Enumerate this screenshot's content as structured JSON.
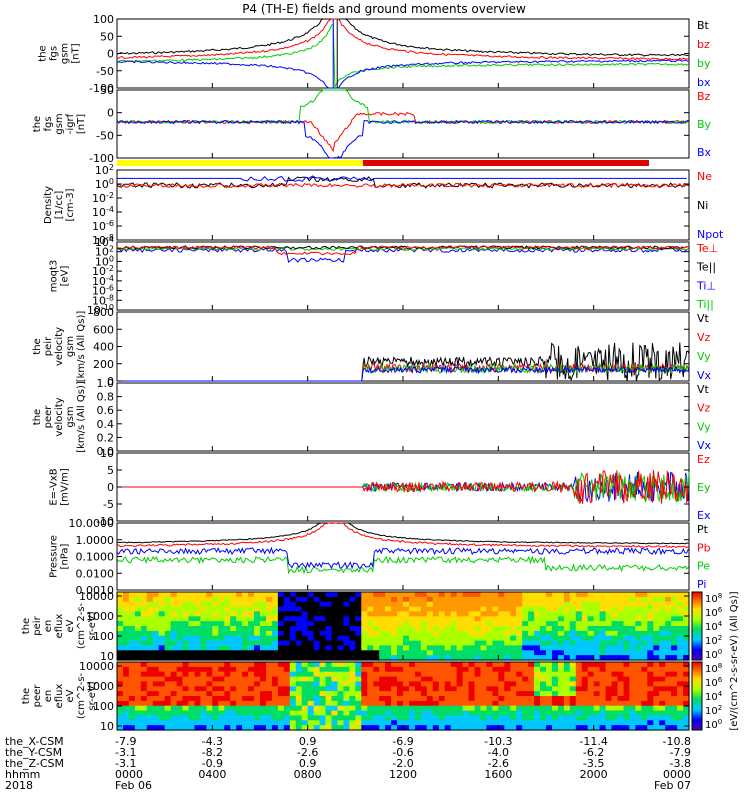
{
  "title": "P4 (TH-E) fields and ground moments overview",
  "colors": {
    "black": "#000000",
    "red": "#ff0000",
    "green": "#00cc00",
    "blue": "#0000ff",
    "yellow": "#ffff00"
  },
  "chart_data": [
    {
      "type": "line",
      "ylabel": [
        "the",
        "fgs",
        "gsm",
        "[nT]"
      ],
      "yticks": [
        "100",
        "50",
        "0",
        "-50",
        "-100"
      ],
      "ylim": [
        -100,
        100
      ],
      "legend": [
        {
          "name": "Bt",
          "color": "#000000"
        },
        {
          "name": "bz",
          "color": "#ff0000"
        },
        {
          "name": "by",
          "color": "#00cc00"
        },
        {
          "name": "bx",
          "color": "#0000ff"
        }
      ]
    },
    {
      "type": "line",
      "ylabel": [
        "the",
        "fgs",
        "gsm",
        "-igrf",
        "[nT]"
      ],
      "yticks": [
        "50",
        "0",
        "-50",
        "-100"
      ],
      "ylim": [
        -125,
        60
      ],
      "legend": [
        {
          "name": "Bz",
          "color": "#ff0000"
        },
        {
          "name": "By",
          "color": "#00cc00"
        },
        {
          "name": "Bx",
          "color": "#0000ff"
        }
      ]
    },
    {
      "type": "line",
      "ylabel": [
        "Density",
        "[1/cc]",
        "[cm-3]"
      ],
      "yticks": [
        "10^2",
        "10^0",
        "10^-2",
        "10^-4",
        "10^-6",
        "10^-8"
      ],
      "log": true,
      "legend": [
        {
          "name": "Ne",
          "color": "#ff0000"
        },
        {
          "name": "Ni",
          "color": "#000000"
        },
        {
          "name": "Npot",
          "color": "#0000ff"
        }
      ]
    },
    {
      "type": "line",
      "ylabel": [
        "moqt3",
        "[eV]"
      ],
      "yticks": [
        "10^4",
        "10^2",
        "10^0",
        "10^-2",
        "10^-4",
        "10^-6",
        "10^-8",
        "10^-10"
      ],
      "log": true,
      "legend": [
        {
          "name": "Te⊥",
          "color": "#ff0000"
        },
        {
          "name": "Te||",
          "color": "#000000"
        },
        {
          "name": "Ti⊥",
          "color": "#0000ff"
        },
        {
          "name": "Ti||",
          "color": "#00cc00"
        }
      ]
    },
    {
      "type": "line",
      "ylabel": [
        "the",
        "peir",
        "velocity",
        "gsm",
        "[km/s (All Qs)]"
      ],
      "yticks": [
        "800",
        "600",
        "400",
        "200",
        "0"
      ],
      "ylim": [
        -50,
        800
      ],
      "legend": [
        {
          "name": "Vt",
          "color": "#000000"
        },
        {
          "name": "Vz",
          "color": "#ff0000"
        },
        {
          "name": "Vy",
          "color": "#00cc00"
        },
        {
          "name": "Vx",
          "color": "#0000ff"
        }
      ]
    },
    {
      "type": "line",
      "ylabel": [
        "the",
        "peer",
        "velocity",
        "gsm",
        "[km/s (All Qs)]"
      ],
      "yticks": [
        "1.0",
        "0.8",
        "0.6",
        "0.4",
        "0.2",
        "0.0"
      ],
      "ylim": [
        0,
        1
      ],
      "legend": [
        {
          "name": "Vt",
          "color": "#000000"
        },
        {
          "name": "Vz",
          "color": "#ff0000"
        },
        {
          "name": "Vy",
          "color": "#00cc00"
        },
        {
          "name": "Vx",
          "color": "#0000ff"
        }
      ]
    },
    {
      "type": "line",
      "ylabel": [
        "E=-VxB",
        "[mV/m]"
      ],
      "yticks": [
        "10",
        "5",
        "0",
        "-5",
        "-10"
      ],
      "ylim": [
        -12,
        12
      ],
      "legend": [
        {
          "name": "Ez",
          "color": "#ff0000"
        },
        {
          "name": "Ey",
          "color": "#00cc00"
        },
        {
          "name": "Ex",
          "color": "#0000ff"
        }
      ]
    },
    {
      "type": "line",
      "ylabel": [
        "Pressure",
        "[nPa]"
      ],
      "yticks": [
        "10.0000",
        "1.0000",
        "0.1000",
        "0.0100",
        "0.0010"
      ],
      "log": true,
      "legend": [
        {
          "name": "Pt",
          "color": "#000000"
        },
        {
          "name": "Pb",
          "color": "#ff0000"
        },
        {
          "name": "Pe",
          "color": "#00cc00"
        },
        {
          "name": "Pi",
          "color": "#0000ff"
        }
      ]
    },
    {
      "type": "heatmap",
      "ylabel": [
        "the",
        "peir",
        "en",
        "eflux",
        "eV",
        "(cm^2-s-",
        "sr-eV)"
      ],
      "yticks": [
        "10000",
        "1000",
        "100",
        "10"
      ],
      "log": true
    },
    {
      "type": "heatmap",
      "ylabel": [
        "the",
        "peer",
        "en",
        "eflux",
        "eV",
        "(cm^2-s-",
        "sr-eV)"
      ],
      "yticks": [
        "10000",
        "1000",
        "100",
        "10"
      ],
      "log": true
    }
  ],
  "colorbar": {
    "label": "[eV/(cm^2-s-sr-eV) (All Qs)]",
    "ticks_upper": [
      "10^8",
      "10^6",
      "10^4",
      "10^2",
      "10^0"
    ],
    "ticks_lower": [
      "10^8",
      "10^6",
      "10^4",
      "10^2",
      "10^0"
    ]
  },
  "xaxis": {
    "rows": [
      {
        "name": "the_X-CSM",
        "values": [
          "-7.9",
          "-4.3",
          "0.9",
          "-6.9",
          "-10.3",
          "-11.4",
          "-10.8"
        ]
      },
      {
        "name": "the_Y-CSM",
        "values": [
          "-3.1",
          "-8.2",
          "-2.6",
          "-0.6",
          "-4.0",
          "-6.2",
          "-7.9"
        ]
      },
      {
        "name": "the_Z-CSM",
        "values": [
          "-3.1",
          "-0.9",
          "0.9",
          "-2.0",
          "-2.6",
          "-3.5",
          "-3.8"
        ]
      },
      {
        "name": "hhmm",
        "values": [
          "0000",
          "0400",
          "0800",
          "1200",
          "1600",
          "2000",
          "0000"
        ]
      }
    ],
    "year": "2018",
    "date_start": "Feb 06",
    "date_end": "Feb 07"
  }
}
